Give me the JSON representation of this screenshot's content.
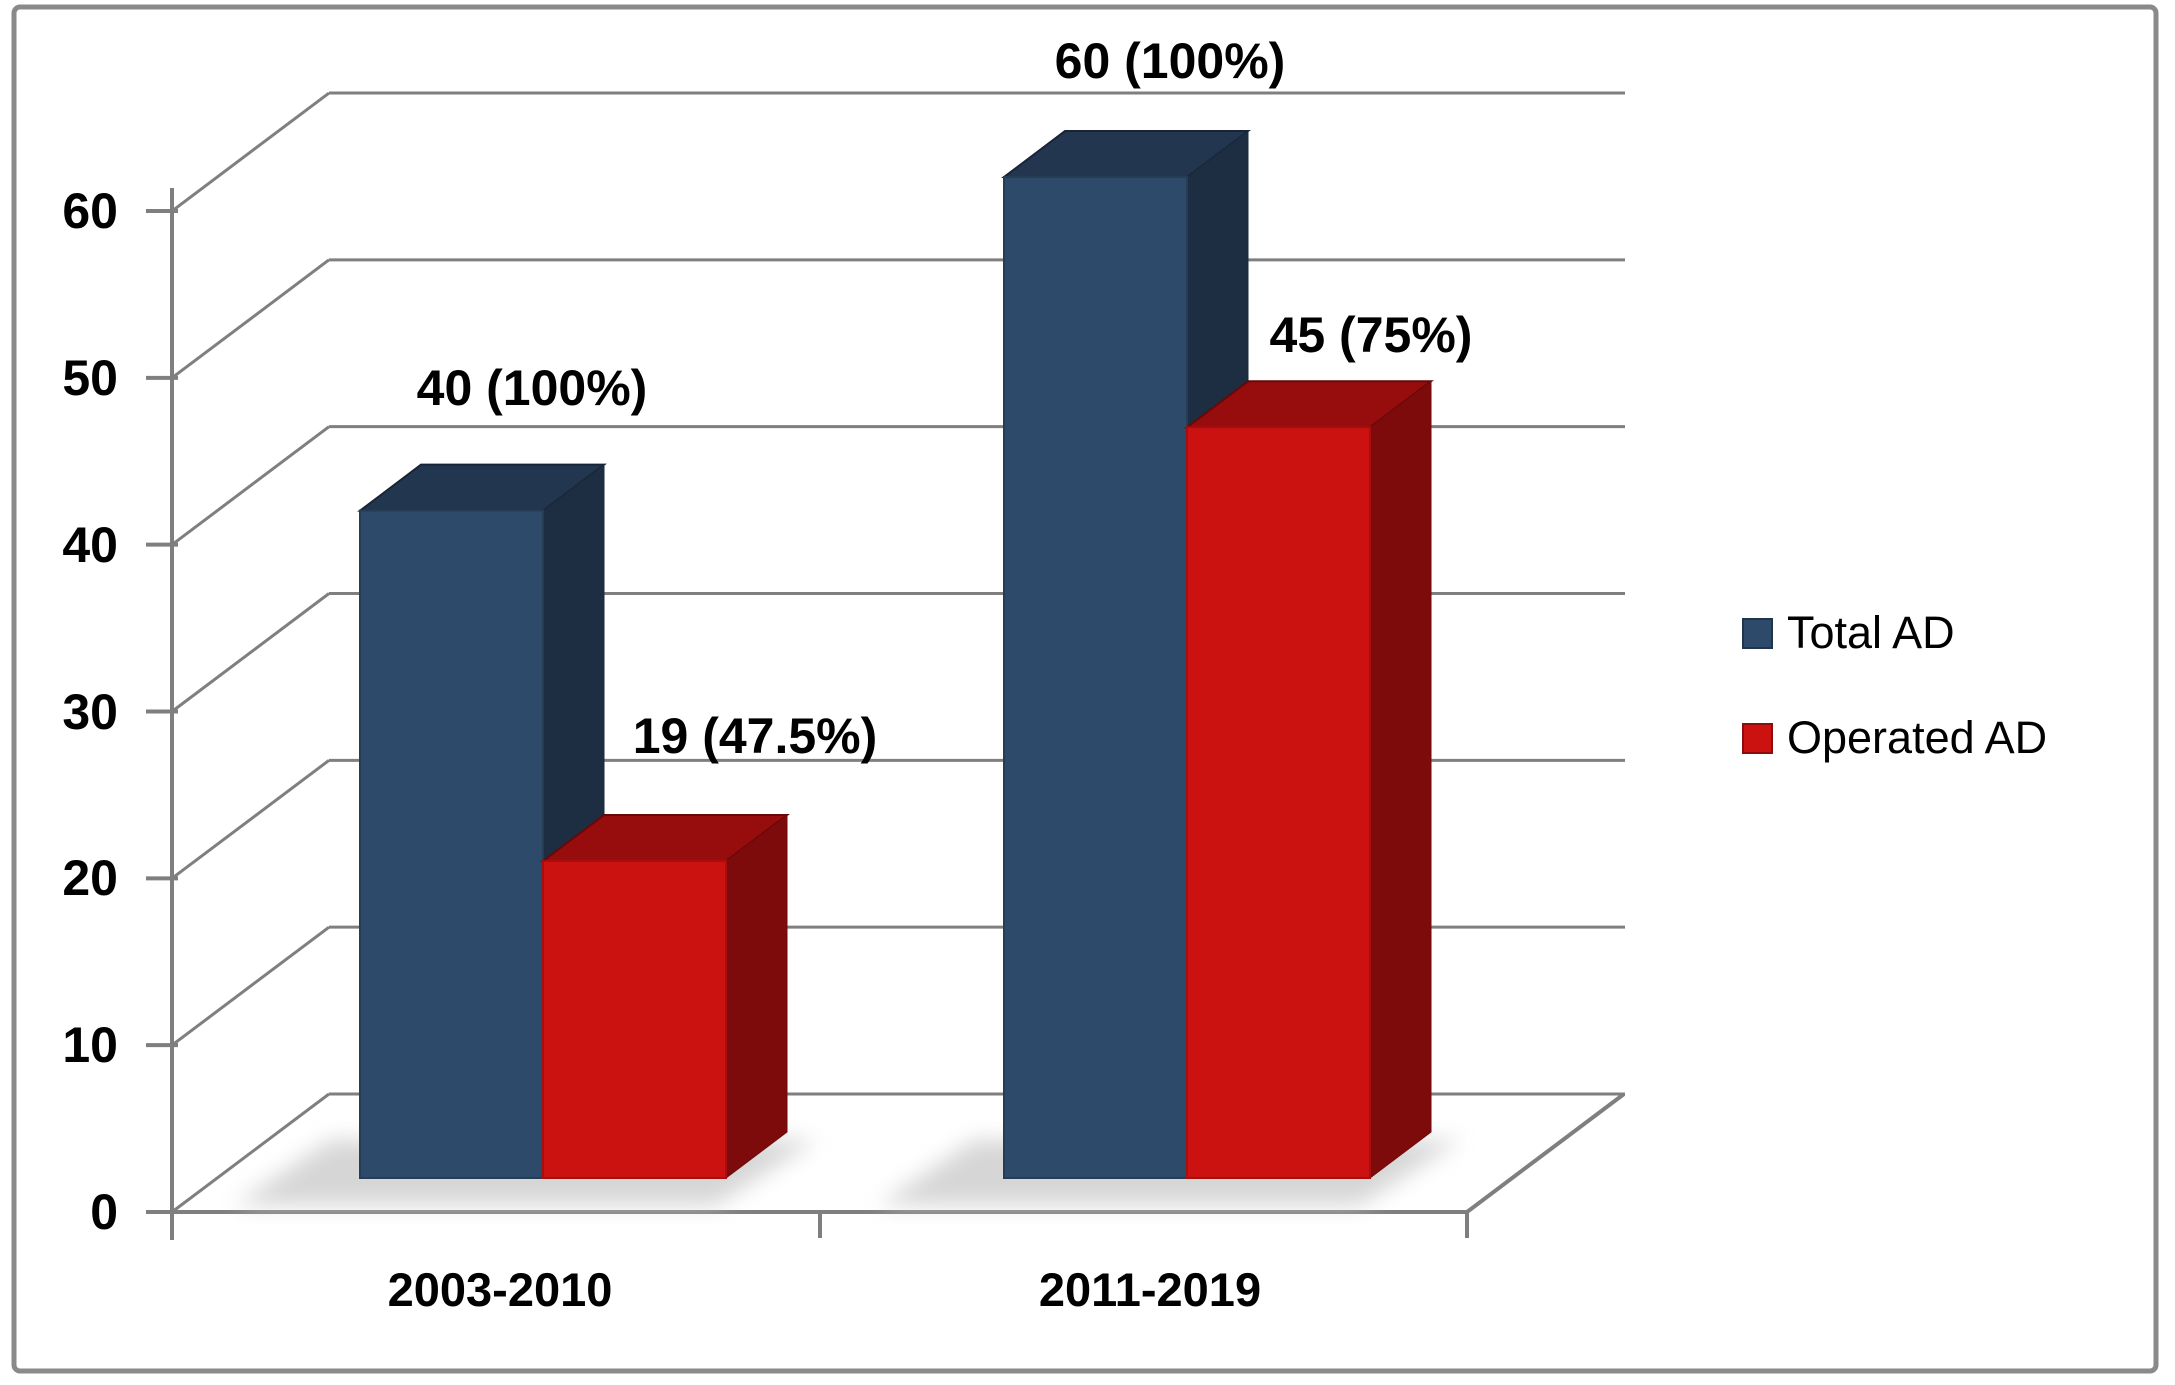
{
  "chart_data": {
    "type": "bar",
    "variant": "3d-clustered-column",
    "title": "",
    "categories": [
      "2003-2010",
      "2011-2019"
    ],
    "series": [
      {
        "name": "Total AD",
        "color": "#2E4A6B",
        "values": [
          40,
          60
        ],
        "data_labels": [
          "40 (100%)",
          "60 (100%)"
        ]
      },
      {
        "name": "Operated AD",
        "color": "#CC1111",
        "values": [
          19,
          45
        ],
        "data_labels": [
          "19 (47.5%)",
          "45 (75%)"
        ]
      }
    ],
    "xlabel": "",
    "ylabel": "",
    "ylim": [
      0,
      60
    ],
    "y_step": 10,
    "y_ticks": [
      "0",
      "10",
      "20",
      "30",
      "40",
      "50",
      "60"
    ],
    "grid": true,
    "legend_position": "right",
    "colors": {
      "gridline": "#7F7F7F",
      "axis": "#7F7F7F",
      "frame_border": "#8A8A8A",
      "shadow": "#CFCFCF",
      "text": "#000000",
      "background": "#FFFFFF"
    }
  }
}
